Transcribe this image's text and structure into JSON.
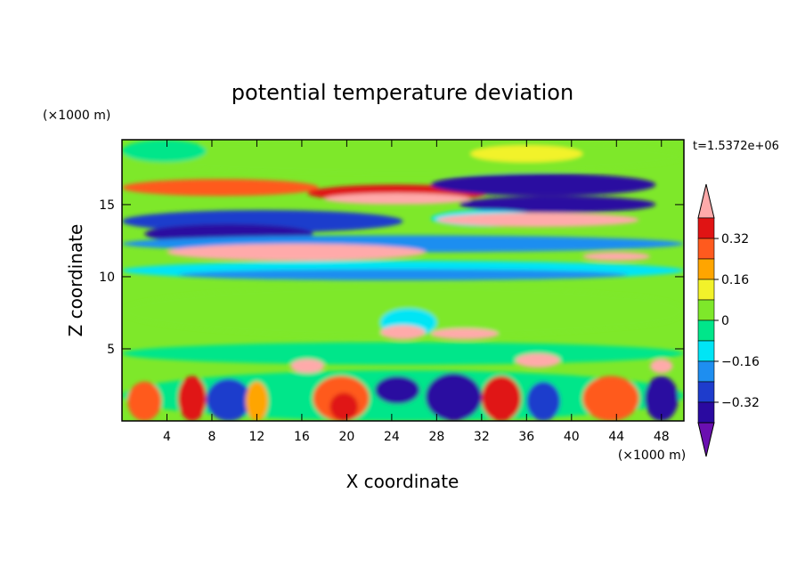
{
  "chart_data": {
    "type": "heatmap",
    "title": "potential temperature deviation",
    "xlabel": "X coordinate",
    "ylabel": "Z coordinate",
    "x_unit": "(×1000 m)",
    "y_unit": "(×1000 m)",
    "time_label": "t=1.5372e+06",
    "xlim": [
      0,
      50
    ],
    "ylim": [
      0,
      19.5
    ],
    "x_ticks": [
      4,
      8,
      12,
      16,
      20,
      24,
      28,
      32,
      36,
      40,
      44,
      48
    ],
    "y_ticks": [
      5,
      10,
      15
    ],
    "colorbar": {
      "levels": [
        -0.4,
        -0.32,
        -0.24,
        -0.16,
        -0.08,
        0,
        0.08,
        0.16,
        0.24,
        0.32,
        0.4
      ],
      "tick_labels": [
        "0.32",
        "0.16",
        "0",
        "−0.16",
        "−0.32"
      ],
      "tick_values": [
        0.32,
        0.16,
        0,
        -0.16,
        -0.32
      ],
      "colors": [
        "#6a0fb0",
        "#2a0aa0",
        "#1e3ccc",
        "#1e8ef0",
        "#00e5f5",
        "#00e68a",
        "#7ee82a",
        "#f2f22a",
        "#ffa500",
        "#ff5a1e",
        "#e01414",
        "#ffaaaa"
      ]
    }
  }
}
